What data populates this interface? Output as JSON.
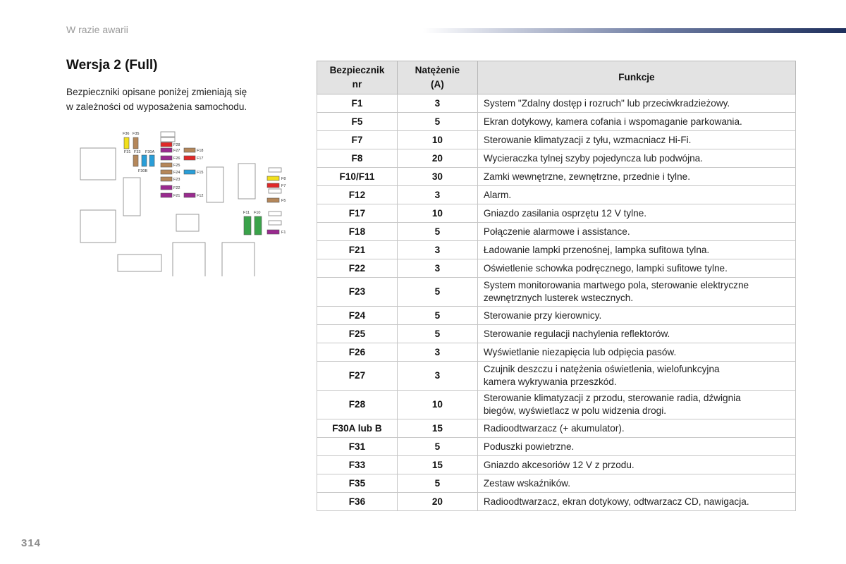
{
  "header": {
    "section": "W razie awarii"
  },
  "sub_title": "Wersja 2 (Full)",
  "intro_line1": "Bezpieczniki opisane poniżej zmieniają się",
  "intro_line2": "w zależności od wyposażenia samochodu.",
  "page_number": "314",
  "colors": {
    "yellow": "#f2e01b",
    "brown": "#b5875a",
    "blue": "#2a9ed8",
    "red": "#e02828",
    "purple": "#9a2a8f",
    "green": "#3aa24a",
    "outline": "#9a9a9a"
  },
  "diagram": {
    "labels": {
      "f36": "F36",
      "f35": "F35",
      "f31": "F31",
      "f33": "F33",
      "f30a": "F30A",
      "f30b": "F30B",
      "f28": "F28",
      "f27": "F27",
      "f26": "F26",
      "f25": "F25",
      "f24": "F24",
      "f23": "F23",
      "f22": "F22",
      "f21": "F21",
      "f18": "F18",
      "f17": "F17",
      "f15": "F15",
      "f12": "F12",
      "f8": "F8",
      "f7": "F7",
      "f5": "F5",
      "f11": "F11",
      "f10": "F10",
      "f1": "F1"
    }
  },
  "table": {
    "headers": {
      "col1_l1": "Bezpiecznik",
      "col1_l2": "nr",
      "col2_l1": "Natężenie",
      "col2_l2": "(A)",
      "col3": "Funkcje"
    },
    "rows": [
      {
        "fuse": "F1",
        "amp": "3",
        "f1": "System \"Zdalny dostęp i rozruch\" lub przeciwkradzieżowy.",
        "f2": ""
      },
      {
        "fuse": "F5",
        "amp": "5",
        "f1": "Ekran dotykowy, kamera cofania i wspomaganie parkowania.",
        "f2": ""
      },
      {
        "fuse": "F7",
        "amp": "10",
        "f1": "Sterowanie klimatyzacji z tyłu, wzmacniacz Hi-Fi.",
        "f2": ""
      },
      {
        "fuse": "F8",
        "amp": "20",
        "f1": "Wycieraczka tylnej szyby pojedyncza lub podwójna.",
        "f2": ""
      },
      {
        "fuse": "F10/F11",
        "amp": "30",
        "f1": "Zamki wewnętrzne, zewnętrzne, przednie i tylne.",
        "f2": ""
      },
      {
        "fuse": "F12",
        "amp": "3",
        "f1": "Alarm.",
        "f2": ""
      },
      {
        "fuse": "F17",
        "amp": "10",
        "f1": "Gniazdo zasilania osprzętu 12 V tylne.",
        "f2": ""
      },
      {
        "fuse": "F18",
        "amp": "5",
        "f1": "Połączenie alarmowe i assistance.",
        "f2": ""
      },
      {
        "fuse": "F21",
        "amp": "3",
        "f1": "Ładowanie lampki przenośnej, lampka sufitowa tylna.",
        "f2": ""
      },
      {
        "fuse": "F22",
        "amp": "3",
        "f1": "Oświetlenie schowka podręcznego, lampki sufitowe tylne.",
        "f2": ""
      },
      {
        "fuse": "F23",
        "amp": "5",
        "f1": "System monitorowania martwego pola, sterowanie elektryczne",
        "f2": "zewnętrznych lusterek wstecznych."
      },
      {
        "fuse": "F24",
        "amp": "5",
        "f1": "Sterowanie przy kierownicy.",
        "f2": ""
      },
      {
        "fuse": "F25",
        "amp": "5",
        "f1": "Sterowanie regulacji nachylenia reflektorów.",
        "f2": ""
      },
      {
        "fuse": "F26",
        "amp": "3",
        "f1": "Wyświetlanie niezapięcia lub odpięcia pasów.",
        "f2": ""
      },
      {
        "fuse": "F27",
        "amp": "3",
        "f1": "Czujnik deszczu i natężenia oświetlenia, wielofunkcyjna",
        "f2": "kamera wykrywania przeszkód."
      },
      {
        "fuse": "F28",
        "amp": "10",
        "f1": "Sterowanie klimatyzacji z przodu, sterowanie radia, dźwignia",
        "f2": "biegów, wyświetlacz w polu widzenia drogi."
      },
      {
        "fuse": "F30A lub B",
        "amp": "15",
        "f1": "Radioodtwarzacz (+ akumulator).",
        "f2": ""
      },
      {
        "fuse": "F31",
        "amp": "5",
        "f1": "Poduszki powietrzne.",
        "f2": ""
      },
      {
        "fuse": "F33",
        "amp": "15",
        "f1": "Gniazdo akcesoriów 12 V z przodu.",
        "f2": ""
      },
      {
        "fuse": "F35",
        "amp": "5",
        "f1": "Zestaw wskaźników.",
        "f2": ""
      },
      {
        "fuse": "F36",
        "amp": "20",
        "f1": "Radioodtwarzacz, ekran dotykowy, odtwarzacz CD, nawigacja.",
        "f2": ""
      }
    ]
  }
}
